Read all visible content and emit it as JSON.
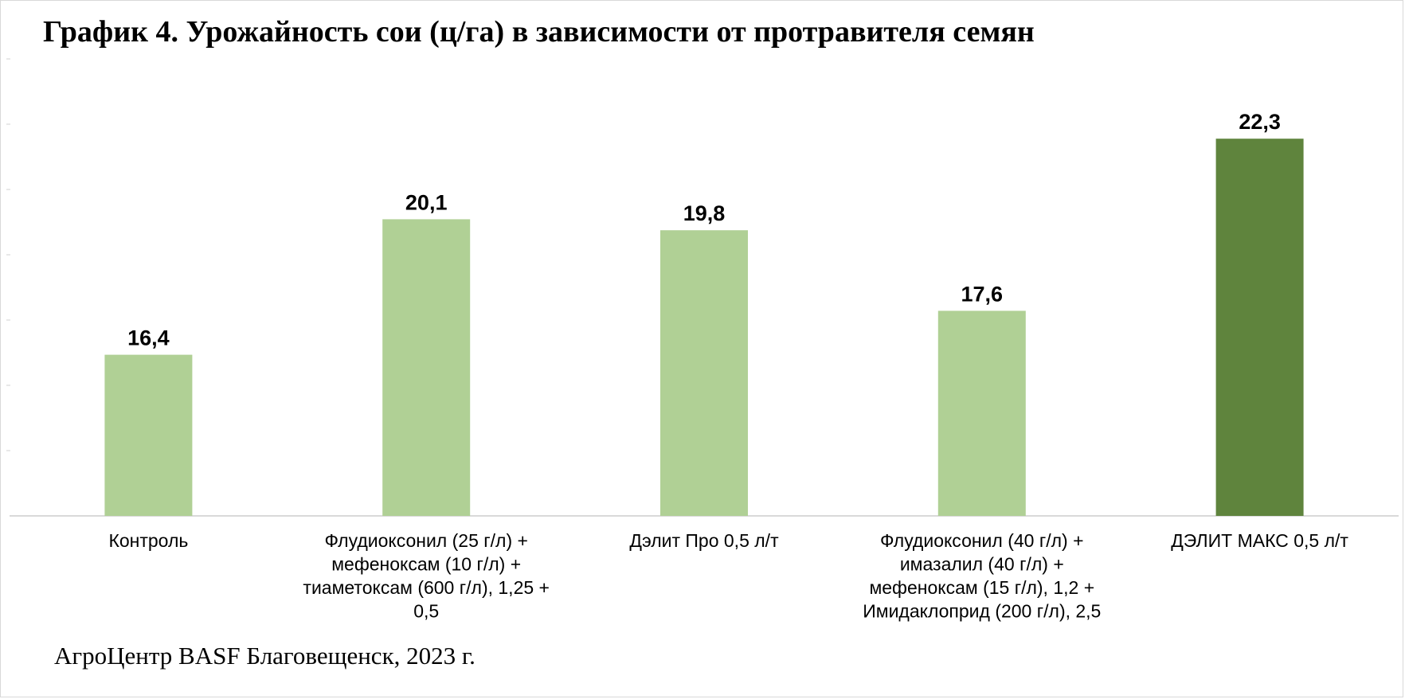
{
  "title": "График 4. Урожайность сои (ц/га) в зависимости от протравителя семян",
  "footer": "АгроЦентр BASF Благовещенск, 2023 г.",
  "chart_data": {
    "type": "bar",
    "categories": [
      [
        "Контроль"
      ],
      [
        "Флудиоксонил (25 г/л) +",
        "мефеноксам (10 г/л) +",
        "тиаметоксам (600 г/л), 1,25 +",
        "0,5"
      ],
      [
        "Дэлит Про 0,5 л/т"
      ],
      [
        "Флудиоксонил (40 г/л) +",
        "имазалил (40 г/л) +",
        "мефеноксам (15 г/л), 1,2 +",
        "Имидаклоприд (200 г/л), 2,5"
      ],
      [
        "ДЭЛИТ МАКС 0,5 л/т"
      ]
    ],
    "values": [
      16.4,
      20.1,
      19.8,
      17.6,
      22.3
    ],
    "value_labels": [
      "16,4",
      "20,1",
      "19,8",
      "17,6",
      "22,3"
    ],
    "colors": [
      "#b0d095",
      "#b0d095",
      "#b0d095",
      "#b0d095",
      "#5f843d"
    ],
    "ylim": [
      12,
      24
    ],
    "grid": false,
    "legend": "none"
  }
}
